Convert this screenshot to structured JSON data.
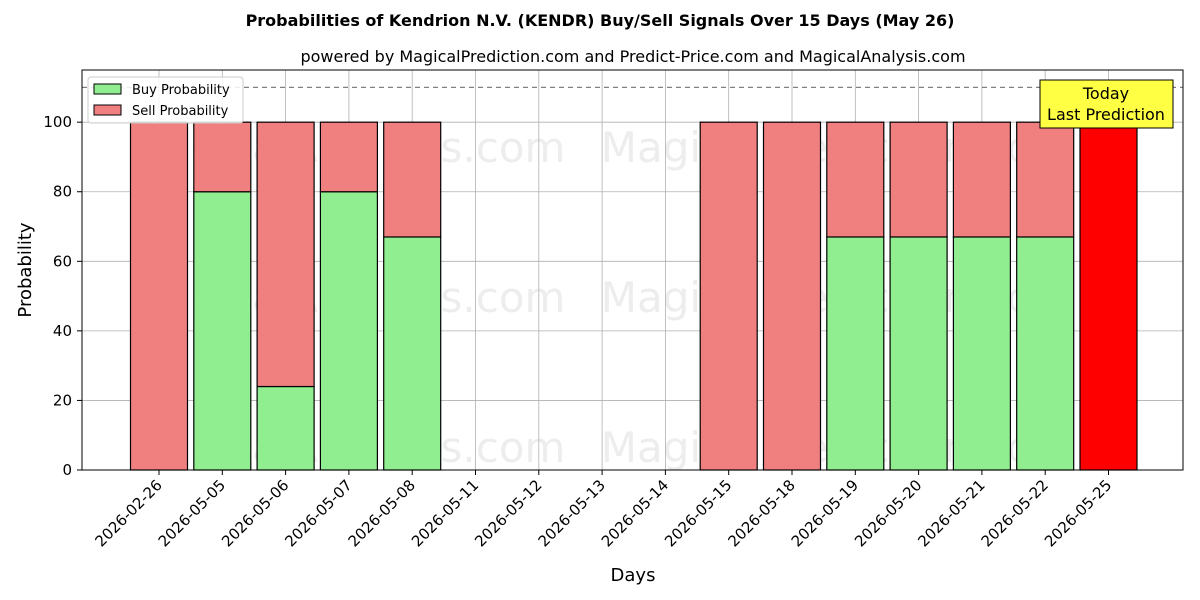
{
  "chart_data": {
    "type": "bar",
    "stacked": true,
    "title": "Probabilities of Kendrion N.V. (KENDR) Buy/Sell Signals Over 15 Days (May 26)",
    "subtitle": "powered by MagicalPrediction.com and Predict-Price.com and MagicalAnalysis.com",
    "xlabel": "Days",
    "ylabel": "Probability",
    "ylim": [
      0,
      115
    ],
    "yticks": [
      0,
      20,
      40,
      60,
      80,
      100
    ],
    "grid": true,
    "legend_position": "top-left",
    "reference_line": 110,
    "watermarks": [
      "MagicalAnalysis.com",
      "MagicalPrediction.com"
    ],
    "categories": [
      "2026-02-26",
      "2026-05-05",
      "2026-05-06",
      "2026-05-07",
      "2026-05-08",
      "2026-05-11",
      "2026-05-12",
      "2026-05-13",
      "2026-05-14",
      "2026-05-15",
      "2026-05-18",
      "2026-05-19",
      "2026-05-20",
      "2026-05-21",
      "2026-05-22",
      "2026-05-25"
    ],
    "series": [
      {
        "name": "Buy Probability",
        "color": "#90ee90",
        "values": [
          0,
          80,
          24,
          80,
          67,
          0,
          0,
          0,
          0,
          0,
          0,
          67,
          67,
          67,
          67,
          0
        ]
      },
      {
        "name": "Sell Probability",
        "color": "#f08080",
        "values": [
          100,
          20,
          76,
          20,
          33,
          0,
          0,
          0,
          0,
          100,
          100,
          33,
          33,
          33,
          33,
          100
        ]
      }
    ],
    "highlight": {
      "category": "2026-05-25",
      "color": "#ff0000"
    },
    "annotation": {
      "lines": [
        "Today",
        "Last Prediction"
      ],
      "background": "#ffff44"
    }
  }
}
